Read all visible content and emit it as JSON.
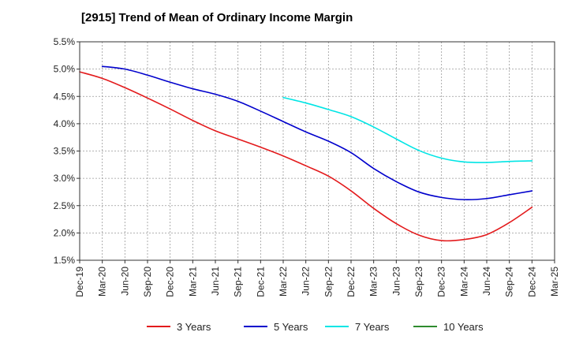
{
  "chart_data": {
    "type": "line",
    "title": "[2915]  Trend of Mean of Ordinary Income Margin",
    "xlabel": "",
    "ylabel": "",
    "x_ticks": [
      "Dec-19",
      "Mar-20",
      "Jun-20",
      "Sep-20",
      "Dec-20",
      "Mar-21",
      "Jun-21",
      "Sep-21",
      "Dec-21",
      "Mar-22",
      "Jun-22",
      "Sep-22",
      "Dec-22",
      "Mar-23",
      "Jun-23",
      "Sep-23",
      "Dec-23",
      "Mar-24",
      "Jun-24",
      "Sep-24",
      "Dec-24",
      "Mar-25"
    ],
    "y_ticks": [
      "1.5%",
      "2.0%",
      "2.5%",
      "3.0%",
      "3.5%",
      "4.0%",
      "4.5%",
      "5.0%",
      "5.5%"
    ],
    "ylim": [
      1.5,
      5.5
    ],
    "grid": true,
    "legend_position": "bottom",
    "series": [
      {
        "name": "3 Years",
        "color": "#e31a1c",
        "x": [
          "Dec-19",
          "Mar-20",
          "Jun-20",
          "Sep-20",
          "Dec-20",
          "Mar-21",
          "Jun-21",
          "Sep-21",
          "Dec-21",
          "Mar-22",
          "Jun-22",
          "Sep-22",
          "Dec-22",
          "Mar-23",
          "Jun-23",
          "Sep-23",
          "Dec-23",
          "Mar-24",
          "Jun-24",
          "Sep-24",
          "Dec-24"
        ],
        "values": [
          4.95,
          4.83,
          4.66,
          4.47,
          4.27,
          4.06,
          3.87,
          3.72,
          3.57,
          3.41,
          3.23,
          3.04,
          2.77,
          2.45,
          2.17,
          1.96,
          1.86,
          1.88,
          1.97,
          2.19,
          2.47
        ]
      },
      {
        "name": "5 Years",
        "color": "#0000cc",
        "x": [
          "Mar-20",
          "Jun-20",
          "Sep-20",
          "Dec-20",
          "Mar-21",
          "Jun-21",
          "Sep-21",
          "Dec-21",
          "Mar-22",
          "Jun-22",
          "Sep-22",
          "Dec-22",
          "Mar-23",
          "Jun-23",
          "Sep-23",
          "Dec-23",
          "Mar-24",
          "Jun-24",
          "Sep-24",
          "Dec-24"
        ],
        "values": [
          5.05,
          5.0,
          4.89,
          4.76,
          4.64,
          4.54,
          4.41,
          4.23,
          4.04,
          3.85,
          3.68,
          3.47,
          3.18,
          2.94,
          2.75,
          2.65,
          2.61,
          2.63,
          2.7,
          2.77
        ]
      },
      {
        "name": "7 Years",
        "color": "#00e5e5",
        "x": [
          "Mar-22",
          "Jun-22",
          "Sep-22",
          "Dec-22",
          "Mar-23",
          "Jun-23",
          "Sep-23",
          "Dec-23",
          "Mar-24",
          "Jun-24",
          "Sep-24",
          "Dec-24"
        ],
        "values": [
          4.48,
          4.38,
          4.26,
          4.13,
          3.94,
          3.72,
          3.51,
          3.37,
          3.3,
          3.29,
          3.31,
          3.32
        ]
      },
      {
        "name": "10 Years",
        "color": "#2e8b2e",
        "x": [],
        "values": []
      }
    ]
  }
}
